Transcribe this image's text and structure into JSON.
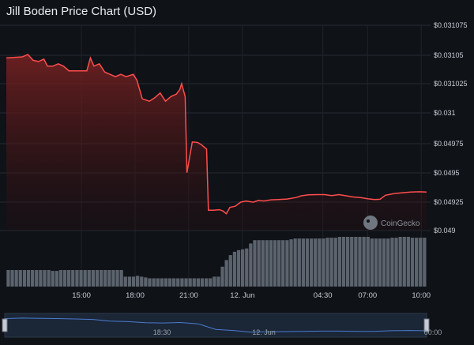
{
  "title": "Jill Boden Price Chart (USD)",
  "watermark": "CoinGecko",
  "navigator_labels": [
    "18:30",
    "12. Jun",
    "00:00"
  ],
  "colors": {
    "background": "#0f1217",
    "line": "#ff4d4d",
    "volume": "#5b636d",
    "navigator_line": "#4a7bd0"
  },
  "chart_data": {
    "type": "line",
    "title": "Jill Boden Price Chart (USD)",
    "ylim": [
      0.0489,
      0.031075
    ],
    "y_ticks": [
      {
        "label": "$0.031075",
        "idx": 0
      },
      {
        "label": "$0.03105",
        "idx": 1
      },
      {
        "label": "$0.031025",
        "idx": 2
      },
      {
        "label": "$0.031",
        "idx": 3
      },
      {
        "label": "$0.04975",
        "idx": 4
      },
      {
        "label": "$0.0495",
        "idx": 5
      },
      {
        "label": "$0.04925",
        "idx": 6
      },
      {
        "label": "$0.049",
        "idx": 7
      }
    ],
    "x_ticks": [
      "15:00",
      "18:00",
      "21:00",
      "12. Jun",
      "04:30",
      "07:00",
      "10:00"
    ],
    "x_tick_hours": [
      15,
      18,
      21,
      24,
      28.5,
      31,
      34
    ],
    "x_range_hours": [
      10.8,
      34.3
    ],
    "grid": true,
    "series": [
      {
        "values": [
          [
            10.8,
            0.031047
          ],
          [
            11.7,
            0.031048
          ],
          [
            12.0,
            0.03105
          ],
          [
            12.3,
            0.031045
          ],
          [
            12.6,
            0.031044
          ],
          [
            12.9,
            0.031046
          ],
          [
            13.1,
            0.03104
          ],
          [
            13.4,
            0.03104
          ],
          [
            13.7,
            0.031042
          ],
          [
            14.0,
            0.03104
          ],
          [
            14.3,
            0.031036
          ],
          [
            14.6,
            0.031036
          ],
          [
            15.3,
            0.031036
          ],
          [
            15.5,
            0.031047
          ],
          [
            15.7,
            0.03104
          ],
          [
            16.0,
            0.031042
          ],
          [
            16.3,
            0.031035
          ],
          [
            16.6,
            0.031033
          ],
          [
            16.9,
            0.031031
          ],
          [
            17.2,
            0.031033
          ],
          [
            17.5,
            0.031031
          ],
          [
            17.9,
            0.031033
          ],
          [
            18.1,
            0.031028
          ],
          [
            18.4,
            0.031012
          ],
          [
            18.8,
            0.03101
          ],
          [
            19.1,
            0.031013
          ],
          [
            19.4,
            0.031017
          ],
          [
            19.7,
            0.03101
          ],
          [
            20.0,
            0.031014
          ],
          [
            20.3,
            0.031016
          ],
          [
            20.5,
            0.03102
          ],
          [
            20.6,
            0.031025
          ],
          [
            20.8,
            0.031014
          ],
          [
            20.9,
            0.0495
          ],
          [
            21.2,
            0.049765
          ],
          [
            21.5,
            0.04976
          ],
          [
            21.7,
            0.049742
          ],
          [
            21.9,
            0.049715
          ],
          [
            22.0,
            0.049705
          ],
          [
            22.1,
            0.049175
          ],
          [
            22.4,
            0.049175
          ],
          [
            22.7,
            0.04918
          ],
          [
            22.9,
            0.04917
          ],
          [
            23.1,
            0.049145
          ],
          [
            23.3,
            0.0492
          ],
          [
            23.6,
            0.04921
          ],
          [
            23.9,
            0.049245
          ],
          [
            24.2,
            0.049255
          ],
          [
            24.6,
            0.049245
          ],
          [
            24.9,
            0.04926
          ],
          [
            25.2,
            0.049255
          ],
          [
            25.6,
            0.049265
          ],
          [
            26.0,
            0.049268
          ],
          [
            26.5,
            0.049272
          ],
          [
            27.0,
            0.049285
          ],
          [
            27.3,
            0.0493
          ],
          [
            27.7,
            0.049308
          ],
          [
            28.2,
            0.04931
          ],
          [
            28.6,
            0.04931
          ],
          [
            29.0,
            0.049302
          ],
          [
            29.4,
            0.04931
          ],
          [
            29.8,
            0.0493
          ],
          [
            30.2,
            0.04929
          ],
          [
            30.6,
            0.049285
          ],
          [
            31.0,
            0.049275
          ],
          [
            31.4,
            0.049268
          ],
          [
            31.7,
            0.04927
          ],
          [
            32.0,
            0.049305
          ],
          [
            32.5,
            0.04932
          ],
          [
            32.9,
            0.049325
          ],
          [
            33.4,
            0.049332
          ],
          [
            33.9,
            0.049335
          ],
          [
            34.3,
            0.049332
          ]
        ]
      }
    ],
    "volume": {
      "type": "bar",
      "values": [
        20,
        20,
        20,
        20,
        20,
        20,
        20,
        20,
        20,
        20,
        20,
        19,
        19,
        20,
        20,
        20,
        20,
        20,
        20,
        20,
        20,
        20,
        20,
        20,
        20,
        20,
        20,
        20,
        20,
        12,
        12,
        12,
        13,
        12,
        11,
        10,
        10,
        10,
        10,
        10,
        10,
        10,
        10,
        10,
        10,
        10,
        10,
        10,
        10,
        10,
        10,
        12,
        12,
        24,
        32,
        38,
        42,
        44,
        45,
        46,
        52,
        56,
        56,
        56,
        56,
        56,
        56,
        56,
        56,
        56,
        57,
        58,
        58,
        58,
        58,
        58,
        58,
        58,
        58,
        59,
        59,
        59,
        60,
        60,
        60,
        60,
        60,
        60,
        60,
        60,
        58,
        58,
        58,
        58,
        58,
        59,
        59,
        60,
        60,
        60,
        59,
        59,
        59,
        59
      ]
    },
    "navigator_values": [
      0.84,
      0.86,
      0.85,
      0.84,
      0.82,
      0.8,
      0.72,
      0.7,
      0.65,
      0.64,
      0.66,
      0.6,
      0.35,
      0.3,
      0.22,
      0.24,
      0.25,
      0.26,
      0.27,
      0.27,
      0.26,
      0.26,
      0.29,
      0.3,
      0.29
    ]
  }
}
